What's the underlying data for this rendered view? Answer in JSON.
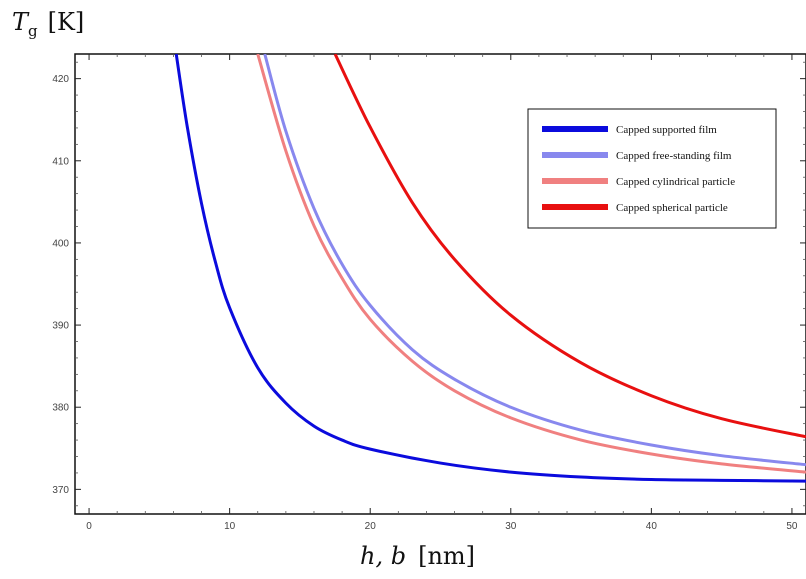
{
  "chart_data": {
    "type": "line",
    "xlabel": "h, b",
    "xunit": "[nm]",
    "ylabel": "T",
    "ylabel_sub": "g",
    "yunit": "[K]",
    "xlim": [
      -1,
      51
    ],
    "ylim": [
      367,
      423
    ],
    "xticks": [
      0,
      10,
      20,
      30,
      40,
      50
    ],
    "yticks": [
      370,
      380,
      390,
      400,
      410,
      420
    ],
    "grid": false,
    "legend_position": "top-right",
    "series": [
      {
        "name": "Capped supported film",
        "color": "#0b0bdd",
        "x": [
          6.2,
          7,
          8,
          9,
          10,
          12,
          14,
          16,
          18,
          20,
          25,
          30,
          35,
          40,
          45,
          51
        ],
        "y": [
          423,
          414,
          404.8,
          397.6,
          392.1,
          384.8,
          380.5,
          377.7,
          376.0,
          374.9,
          373.2,
          372.1,
          371.5,
          371.2,
          371.1,
          371.0
        ]
      },
      {
        "name": "Capped free-standing film",
        "color": "#8888ee",
        "x": [
          12.5,
          14,
          16,
          18,
          20,
          23,
          26,
          30,
          35,
          40,
          45,
          51
        ],
        "y": [
          423,
          413.6,
          404.2,
          397.4,
          392.4,
          387.0,
          383.4,
          380.0,
          377.2,
          375.4,
          374.1,
          373.0
        ]
      },
      {
        "name": "Capped cylindrical particle",
        "color": "#f08080",
        "x": [
          12.0,
          14,
          16,
          18,
          20,
          23,
          26,
          30,
          35,
          40,
          45,
          51
        ],
        "y": [
          423,
          411.2,
          402.1,
          395.7,
          390.7,
          385.6,
          382.0,
          378.7,
          376.0,
          374.3,
          373.1,
          372.1
        ]
      },
      {
        "name": "Capped spherical particle",
        "color": "#e81010",
        "x": [
          17.5,
          20,
          23,
          26,
          30,
          35,
          40,
          45,
          51
        ],
        "y": [
          423,
          414.1,
          404.9,
          398.0,
          391.2,
          385.4,
          381.4,
          378.6,
          376.4
        ]
      }
    ]
  }
}
